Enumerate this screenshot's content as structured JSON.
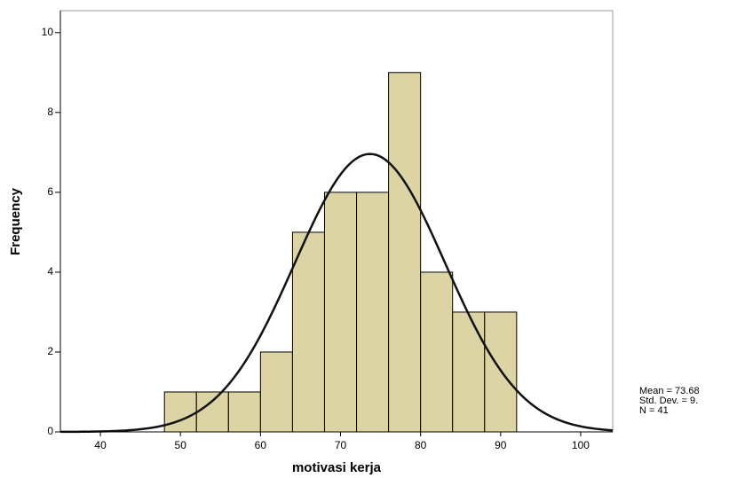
{
  "chart_data": {
    "type": "histogram",
    "xlabel": "motivasi kerja",
    "ylabel": "Frequency",
    "bins": [
      48,
      52,
      56,
      60,
      64,
      68,
      72,
      76,
      80,
      84,
      88,
      92
    ],
    "values": [
      1,
      1,
      1,
      2,
      5,
      6,
      6,
      9,
      4,
      3,
      3
    ],
    "color": "#d6cd94",
    "xlim": [
      35,
      104
    ],
    "xticks": [
      40,
      50,
      60,
      70,
      80,
      90,
      100
    ],
    "ylim": [
      0,
      10.55
    ],
    "yticks": [
      0,
      2,
      4,
      6,
      8,
      10
    ],
    "normal_curve": {
      "mean": 73.68,
      "std_dev": 9.4,
      "n": 41,
      "color": "#111111"
    },
    "stats_labels": [
      "Mean = 73.68",
      "Std. Dev. = 9.",
      "N = 41"
    ]
  }
}
